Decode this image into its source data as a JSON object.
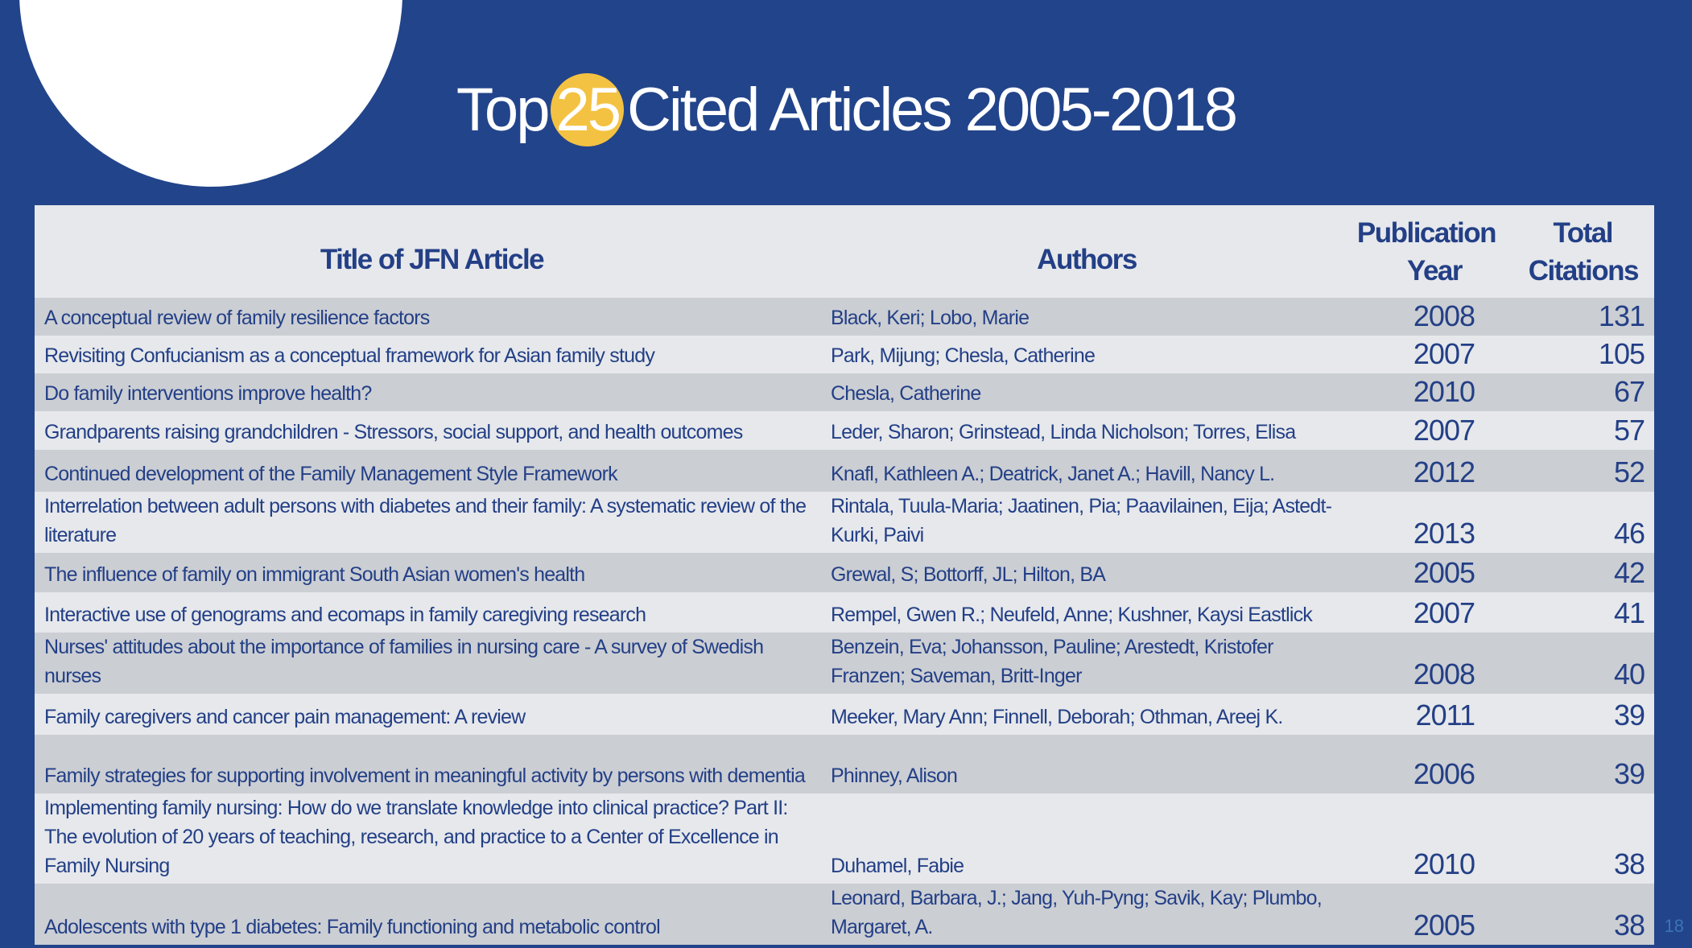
{
  "slide": {
    "title_prefix": "Top",
    "title_number": "25",
    "title_suffix": "Cited Articles 2005-2018",
    "page_number": "18",
    "colors": {
      "background": "#22448a",
      "accent": "#f4c242",
      "text": "#233f86"
    }
  },
  "table": {
    "headers": {
      "title": "Title of JFN Article",
      "authors": "Authors",
      "year_line1": "Publication",
      "year_line2": "Year",
      "citations_line1": "Total",
      "citations_line2": "Citations"
    },
    "rows": [
      {
        "title": "A conceptual review of family resilience factors",
        "authors": "Black, Keri; Lobo, Marie",
        "year": "2008",
        "citations": "131"
      },
      {
        "title": "Revisiting Confucianism as a conceptual framework for Asian family study",
        "authors": "Park, Mijung; Chesla, Catherine",
        "year": "2007",
        "citations": "105"
      },
      {
        "title": "Do family interventions improve health?",
        "authors": "Chesla, Catherine",
        "year": "2010",
        "citations": "67"
      },
      {
        "title": "Grandparents raising grandchildren - Stressors, social support, and health outcomes",
        "authors": "Leder, Sharon; Grinstead, Linda Nicholson; Torres, Elisa",
        "year": "2007",
        "citations": "57"
      },
      {
        "title": "Continued development of the Family Management Style Framework",
        "authors": "Knafl, Kathleen A.; Deatrick, Janet A.; Havill, Nancy L.",
        "year": "2012",
        "citations": "52"
      },
      {
        "title": "Interrelation between adult persons with diabetes and their family: A systematic review of the literature",
        "authors": "Rintala, Tuula-Maria; Jaatinen, Pia; Paavilainen, Eija; Astedt-Kurki, Paivi",
        "year": "2013",
        "citations": "46"
      },
      {
        "title": "The influence of family on immigrant South Asian women's health",
        "authors": "Grewal, S; Bottorff, JL; Hilton, BA",
        "year": "2005",
        "citations": "42"
      },
      {
        "title": "Interactive use of genograms and ecomaps in family caregiving research",
        "authors": "Rempel, Gwen R.; Neufeld, Anne; Kushner, Kaysi Eastlick",
        "year": "2007",
        "citations": "41"
      },
      {
        "title": "Nurses' attitudes about the importance of families in nursing care - A survey of Swedish nurses",
        "authors": "Benzein, Eva; Johansson, Pauline; Arestedt, Kristofer Franzen; Saveman, Britt-Inger",
        "year": "2008",
        "citations": "40"
      },
      {
        "title": "Family caregivers and cancer pain management: A review",
        "authors": "Meeker, Mary Ann; Finnell, Deborah; Othman, Areej K.",
        "year": "2011",
        "citations": "39"
      },
      {
        "title": "Family strategies for supporting involvement in meaningful activity by persons with dementia",
        "authors": "Phinney, Alison",
        "year": "2006",
        "citations": "39"
      },
      {
        "title": "Implementing family nursing: How do we translate knowledge into clinical practice? Part II: The evolution of 20 years of teaching, research, and practice to a Center of Excellence in Family Nursing",
        "authors": "Duhamel, Fabie",
        "year": "2010",
        "citations": "38"
      },
      {
        "title": "Adolescents with type 1 diabetes: Family functioning and metabolic control",
        "authors": "Leonard, Barbara, J.; Jang, Yuh-Pyng; Savik, Kay; Plumbo, Margaret, A.",
        "year": "2005",
        "citations": "38"
      }
    ]
  }
}
